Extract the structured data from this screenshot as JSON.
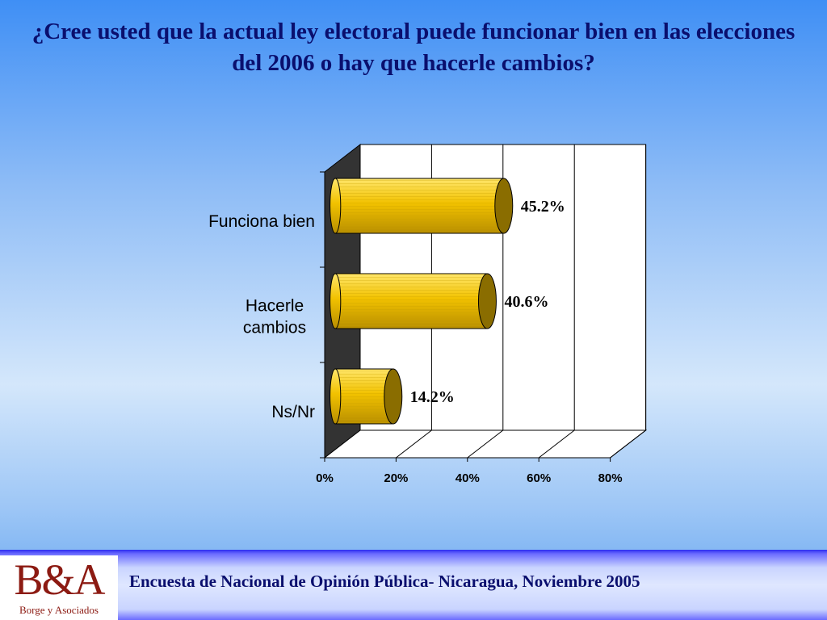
{
  "slide": {
    "title": "¿Cree usted que la actual ley electoral puede funcionar bien en las elecciones del 2006 o hay que hacerle cambios?",
    "footer": "Encuesta de Nacional de Opinión Pública- Nicaragua, Noviembre 2005",
    "logo": {
      "mark": "B&A",
      "subtitle": "Borge y Asociados"
    }
  },
  "colors": {
    "bar_face": "#f2c200",
    "bar_highlight": "#ffe66b",
    "bar_shadow": "#b88e00",
    "bar_cap": "#8a6d00",
    "wall": "#333333",
    "title": "#0a0f6e"
  },
  "chart_data": {
    "type": "bar",
    "orientation": "horizontal",
    "categories": [
      [
        "Funciona bien"
      ],
      [
        "Hacerle",
        "cambios"
      ],
      [
        "Ns/Nr"
      ]
    ],
    "values": [
      45.2,
      40.6,
      14.2
    ],
    "value_labels": [
      "45.2%",
      "40.6%",
      "14.2%"
    ],
    "xlim": [
      0,
      80
    ],
    "ticks": [
      0,
      20,
      40,
      60,
      80
    ],
    "tick_labels": [
      "0%",
      "20%",
      "40%",
      "60%",
      "80%"
    ],
    "grid": true,
    "title": "¿Cree usted que la actual ley electoral puede funcionar bien en las elecciones del 2006 o hay que hacerle cambios?"
  }
}
